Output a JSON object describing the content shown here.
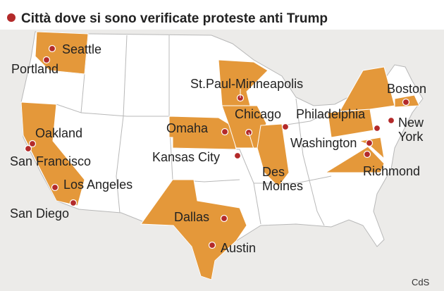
{
  "title": "Città dove si sono verificate proteste anti Trump",
  "cities": [
    {
      "lines": [
        "Seattle"
      ]
    },
    {
      "lines": [
        "Portland"
      ]
    },
    {
      "lines": [
        "Oakland"
      ]
    },
    {
      "lines": [
        "San Francisco"
      ]
    },
    {
      "lines": [
        "Los Angeles"
      ]
    },
    {
      "lines": [
        "San Diego"
      ]
    },
    {
      "lines": [
        "St.Paul-Minneapolis"
      ]
    },
    {
      "lines": [
        "Omaha"
      ]
    },
    {
      "lines": [
        "Chicago"
      ]
    },
    {
      "lines": [
        "Kansas City"
      ]
    },
    {
      "lines": [
        "Des",
        "Moines"
      ]
    },
    {
      "lines": [
        "Dallas"
      ]
    },
    {
      "lines": [
        "Austin"
      ]
    },
    {
      "lines": [
        "Philadelphia"
      ]
    },
    {
      "lines": [
        "Washington"
      ]
    },
    {
      "lines": [
        "Richmond"
      ]
    },
    {
      "lines": [
        "Boston"
      ]
    },
    {
      "lines": [
        "New",
        "York"
      ]
    }
  ],
  "credit": "CdS"
}
